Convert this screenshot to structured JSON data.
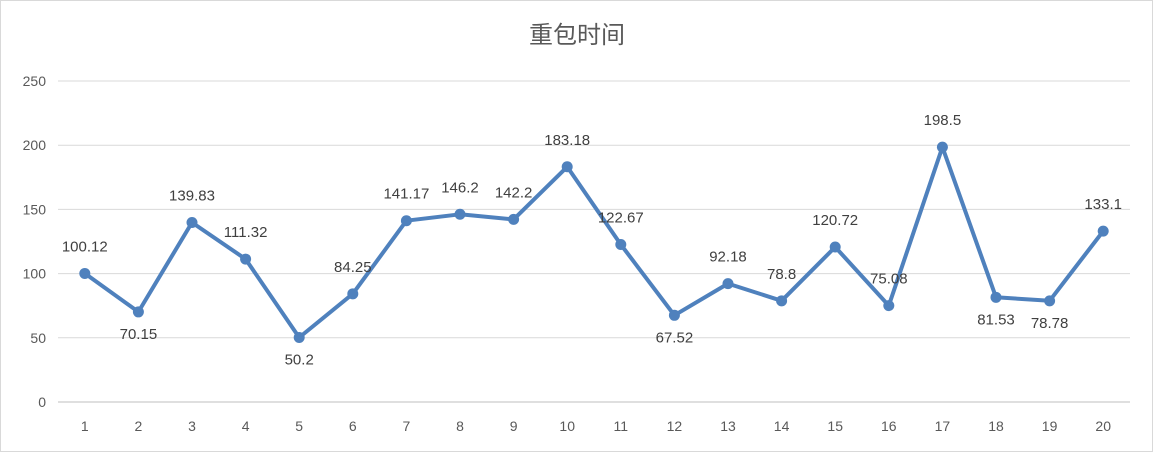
{
  "chart_data": {
    "type": "line",
    "title": "重包时间",
    "xlabel": "",
    "ylabel": "",
    "categories": [
      "1",
      "2",
      "3",
      "4",
      "5",
      "6",
      "7",
      "8",
      "9",
      "10",
      "11",
      "12",
      "13",
      "14",
      "15",
      "16",
      "17",
      "18",
      "19",
      "20"
    ],
    "series": [
      {
        "values": [
          100.12,
          70.15,
          139.83,
          111.32,
          50.2,
          84.25,
          141.17,
          146.2,
          142.2,
          183.18,
          122.67,
          67.52,
          92.18,
          78.8,
          120.72,
          75.08,
          198.5,
          81.53,
          78.78,
          133.1
        ],
        "color": "#4f81bd"
      }
    ],
    "data_labels": [
      "100.12",
      "70.15",
      "139.83",
      "111.32",
      "50.2",
      "84.25",
      "141.17",
      "146.2",
      "142.2",
      "183.18",
      "122.67",
      "67.52",
      "92.18",
      "78.8",
      "120.72",
      "75.08",
      "198.5",
      "81.53",
      "78.78",
      "133.1"
    ],
    "label_positions": [
      "above",
      "below",
      "above",
      "above",
      "below",
      "above",
      "above",
      "above",
      "above",
      "above",
      "above",
      "below",
      "above",
      "above",
      "above",
      "above",
      "above",
      "below",
      "below",
      "above"
    ],
    "yticks": [
      0,
      50,
      100,
      150,
      200,
      250
    ],
    "ylim": [
      0,
      250
    ],
    "grid": true,
    "legend": "none"
  }
}
